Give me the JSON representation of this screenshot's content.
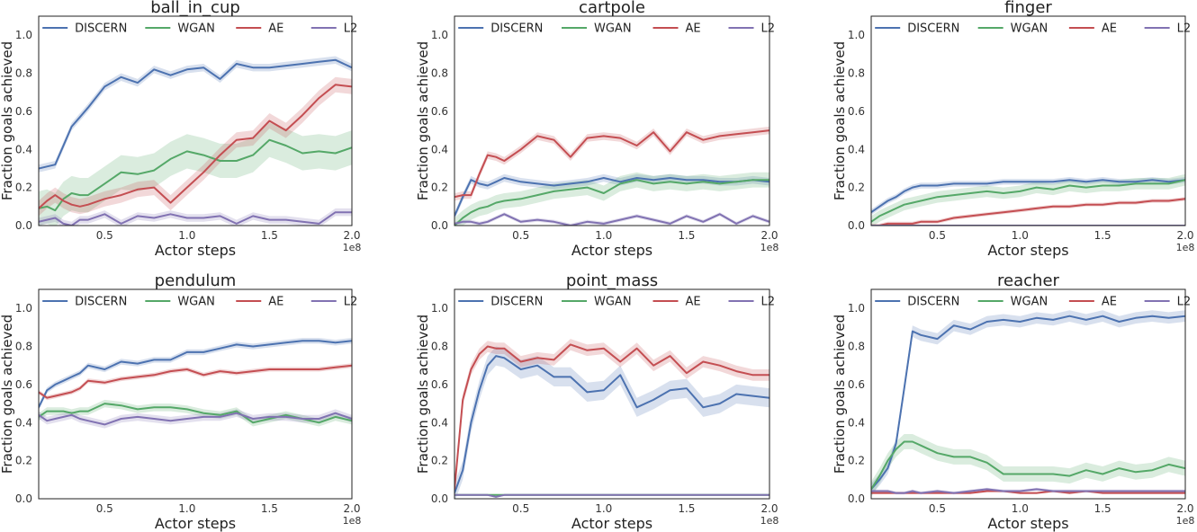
{
  "colors": {
    "DISCERN": "#4c72b0",
    "WGAN": "#55a868",
    "AE": "#c44e52",
    "L2": "#8172b2"
  },
  "chart_data": [
    {
      "type": "line",
      "title": "ball_in_cup",
      "xlabel": "Actor steps",
      "ylabel": "Fraction goals achieved",
      "x_scale_label": "1e8",
      "xlim": [
        0.1,
        2.0
      ],
      "ylim": [
        0.0,
        1.1
      ],
      "xticks": [
        "0.5",
        "1.0",
        "1.5",
        "2.0"
      ],
      "yticks": [
        "0.0",
        "0.2",
        "0.4",
        "0.6",
        "0.8",
        "1.0"
      ],
      "legend": [
        "DISCERN",
        "WGAN",
        "AE",
        "L2"
      ],
      "x": [
        0.1,
        0.15,
        0.2,
        0.25,
        0.3,
        0.35,
        0.4,
        0.5,
        0.6,
        0.7,
        0.8,
        0.9,
        1.0,
        1.1,
        1.2,
        1.3,
        1.4,
        1.5,
        1.6,
        1.7,
        1.8,
        1.9,
        2.0
      ],
      "series": [
        {
          "name": "DISCERN",
          "values": [
            0.3,
            0.31,
            0.32,
            0.42,
            0.52,
            0.57,
            0.62,
            0.73,
            0.78,
            0.75,
            0.82,
            0.79,
            0.82,
            0.83,
            0.77,
            0.85,
            0.83,
            0.83,
            0.84,
            0.85,
            0.86,
            0.87,
            0.83
          ],
          "band": 0.02
        },
        {
          "name": "WGAN",
          "values": [
            0.09,
            0.1,
            0.08,
            0.14,
            0.17,
            0.16,
            0.16,
            0.22,
            0.28,
            0.27,
            0.29,
            0.35,
            0.39,
            0.37,
            0.34,
            0.34,
            0.37,
            0.45,
            0.42,
            0.38,
            0.39,
            0.38,
            0.41
          ],
          "band": 0.09
        },
        {
          "name": "AE",
          "values": [
            0.09,
            0.13,
            0.16,
            0.13,
            0.11,
            0.1,
            0.11,
            0.14,
            0.16,
            0.19,
            0.2,
            0.12,
            0.2,
            0.28,
            0.37,
            0.45,
            0.46,
            0.55,
            0.5,
            0.58,
            0.67,
            0.74,
            0.73
          ],
          "band": 0.04
        },
        {
          "name": "L2",
          "values": [
            0.02,
            0.03,
            0.04,
            0.01,
            0.0,
            0.03,
            0.03,
            0.06,
            0.01,
            0.05,
            0.04,
            0.06,
            0.04,
            0.04,
            0.05,
            0.01,
            0.05,
            0.03,
            0.03,
            0.02,
            0.01,
            0.07,
            0.07
          ],
          "band": 0.02
        }
      ]
    },
    {
      "type": "line",
      "title": "cartpole",
      "xlabel": "Actor steps",
      "ylabel": "Fraction goals achieved",
      "x_scale_label": "1e8",
      "xlim": [
        0.1,
        2.0
      ],
      "ylim": [
        0.0,
        1.1
      ],
      "xticks": [
        "0.5",
        "1.0",
        "1.5",
        "2.0"
      ],
      "yticks": [
        "0.0",
        "0.2",
        "0.4",
        "0.6",
        "0.8",
        "1.0"
      ],
      "legend": [
        "DISCERN",
        "WGAN",
        "AE",
        "L2"
      ],
      "x": [
        0.1,
        0.15,
        0.2,
        0.25,
        0.3,
        0.35,
        0.4,
        0.5,
        0.6,
        0.7,
        0.8,
        0.9,
        1.0,
        1.1,
        1.2,
        1.3,
        1.4,
        1.5,
        1.6,
        1.7,
        1.8,
        1.9,
        2.0
      ],
      "series": [
        {
          "name": "DISCERN",
          "values": [
            0.05,
            0.15,
            0.24,
            0.22,
            0.21,
            0.23,
            0.25,
            0.23,
            0.22,
            0.21,
            0.22,
            0.23,
            0.25,
            0.23,
            0.25,
            0.24,
            0.25,
            0.24,
            0.24,
            0.23,
            0.23,
            0.24,
            0.23
          ],
          "band": 0.02
        },
        {
          "name": "WGAN",
          "values": [
            0.0,
            0.04,
            0.07,
            0.09,
            0.1,
            0.12,
            0.13,
            0.14,
            0.16,
            0.18,
            0.19,
            0.2,
            0.17,
            0.22,
            0.24,
            0.22,
            0.23,
            0.22,
            0.23,
            0.22,
            0.23,
            0.24,
            0.24
          ],
          "band": 0.04
        },
        {
          "name": "AE",
          "values": [
            0.15,
            0.16,
            0.16,
            0.27,
            0.37,
            0.36,
            0.34,
            0.4,
            0.47,
            0.45,
            0.36,
            0.46,
            0.47,
            0.46,
            0.42,
            0.49,
            0.39,
            0.49,
            0.45,
            0.47,
            0.48,
            0.49,
            0.5
          ],
          "band": 0.02
        },
        {
          "name": "L2",
          "values": [
            0.01,
            0.02,
            0.02,
            0.01,
            0.02,
            0.04,
            0.06,
            0.02,
            0.03,
            0.02,
            0.0,
            0.02,
            0.01,
            0.03,
            0.05,
            0.03,
            0.01,
            0.05,
            0.02,
            0.06,
            0.01,
            0.05,
            0.02
          ],
          "band": 0.01
        }
      ]
    },
    {
      "type": "line",
      "title": "finger",
      "xlabel": "Actor steps",
      "ylabel": "Fraction goals achieved",
      "x_scale_label": "1e8",
      "xlim": [
        0.1,
        2.0
      ],
      "ylim": [
        0.0,
        1.1
      ],
      "xticks": [
        "0.5",
        "1.0",
        "1.5",
        "2.0"
      ],
      "yticks": [
        "0.0",
        "0.2",
        "0.4",
        "0.6",
        "0.8",
        "1.0"
      ],
      "legend": [
        "DISCERN",
        "WGAN",
        "AE",
        "L2"
      ],
      "x": [
        0.1,
        0.15,
        0.2,
        0.25,
        0.3,
        0.35,
        0.4,
        0.5,
        0.6,
        0.7,
        0.8,
        0.9,
        1.0,
        1.1,
        1.2,
        1.3,
        1.4,
        1.5,
        1.6,
        1.7,
        1.8,
        1.9,
        2.0
      ],
      "series": [
        {
          "name": "DISCERN",
          "values": [
            0.07,
            0.1,
            0.13,
            0.15,
            0.18,
            0.2,
            0.21,
            0.21,
            0.22,
            0.22,
            0.22,
            0.23,
            0.23,
            0.23,
            0.23,
            0.24,
            0.23,
            0.24,
            0.23,
            0.23,
            0.24,
            0.23,
            0.24
          ],
          "band": 0.015
        },
        {
          "name": "WGAN",
          "values": [
            0.02,
            0.05,
            0.07,
            0.09,
            0.11,
            0.12,
            0.13,
            0.15,
            0.16,
            0.17,
            0.18,
            0.17,
            0.18,
            0.2,
            0.19,
            0.21,
            0.2,
            0.21,
            0.21,
            0.22,
            0.22,
            0.22,
            0.24
          ],
          "band": 0.03
        },
        {
          "name": "AE",
          "values": [
            0.0,
            0.0,
            0.01,
            0.01,
            0.01,
            0.01,
            0.02,
            0.02,
            0.04,
            0.05,
            0.06,
            0.07,
            0.08,
            0.09,
            0.1,
            0.1,
            0.11,
            0.11,
            0.12,
            0.12,
            0.13,
            0.13,
            0.14
          ],
          "band": 0.01
        },
        {
          "name": "L2",
          "values": [
            0.0,
            0.0,
            0.0,
            0.0,
            0.0,
            0.0,
            0.0,
            0.0,
            0.0,
            0.0,
            0.0,
            0.0,
            0.0,
            0.0,
            0.0,
            0.0,
            0.0,
            0.0,
            0.0,
            0.0,
            0.0,
            0.0,
            0.0
          ],
          "band": 0.002
        }
      ]
    },
    {
      "type": "line",
      "title": "pendulum",
      "xlabel": "Actor steps",
      "ylabel": "Fraction goals achieved",
      "x_scale_label": "1e8",
      "xlim": [
        0.1,
        2.0
      ],
      "ylim": [
        0.0,
        1.1
      ],
      "xticks": [
        "0.5",
        "1.0",
        "1.5",
        "2.0"
      ],
      "yticks": [
        "0.0",
        "0.2",
        "0.4",
        "0.6",
        "0.8",
        "1.0"
      ],
      "legend": [
        "DISCERN",
        "WGAN",
        "AE",
        "L2"
      ],
      "x": [
        0.1,
        0.15,
        0.2,
        0.25,
        0.3,
        0.35,
        0.4,
        0.5,
        0.6,
        0.7,
        0.8,
        0.9,
        1.0,
        1.1,
        1.2,
        1.3,
        1.4,
        1.5,
        1.6,
        1.7,
        1.8,
        1.9,
        2.0
      ],
      "series": [
        {
          "name": "DISCERN",
          "values": [
            0.48,
            0.57,
            0.6,
            0.62,
            0.64,
            0.66,
            0.7,
            0.68,
            0.72,
            0.71,
            0.73,
            0.73,
            0.77,
            0.77,
            0.79,
            0.81,
            0.8,
            0.81,
            0.82,
            0.83,
            0.83,
            0.82,
            0.83
          ],
          "band": 0.015
        },
        {
          "name": "WGAN",
          "values": [
            0.43,
            0.46,
            0.46,
            0.46,
            0.45,
            0.46,
            0.46,
            0.5,
            0.49,
            0.47,
            0.48,
            0.48,
            0.47,
            0.45,
            0.44,
            0.46,
            0.4,
            0.42,
            0.44,
            0.42,
            0.4,
            0.43,
            0.41
          ],
          "band": 0.02
        },
        {
          "name": "AE",
          "values": [
            0.56,
            0.53,
            0.54,
            0.55,
            0.56,
            0.58,
            0.62,
            0.61,
            0.63,
            0.64,
            0.65,
            0.67,
            0.68,
            0.65,
            0.67,
            0.66,
            0.67,
            0.68,
            0.68,
            0.68,
            0.68,
            0.69,
            0.7
          ],
          "band": 0.012
        },
        {
          "name": "L2",
          "values": [
            0.44,
            0.41,
            0.42,
            0.43,
            0.44,
            0.42,
            0.41,
            0.39,
            0.42,
            0.43,
            0.42,
            0.41,
            0.42,
            0.43,
            0.43,
            0.45,
            0.42,
            0.43,
            0.43,
            0.42,
            0.42,
            0.45,
            0.42
          ],
          "band": 0.02
        }
      ]
    },
    {
      "type": "line",
      "title": "point_mass",
      "xlabel": "Actor steps",
      "ylabel": "Fraction goals achieved",
      "x_scale_label": "1e8",
      "xlim": [
        0.1,
        2.0
      ],
      "ylim": [
        0.0,
        1.1
      ],
      "xticks": [
        "0.5",
        "1.0",
        "1.5",
        "2.0"
      ],
      "yticks": [
        "0.0",
        "0.2",
        "0.4",
        "0.6",
        "0.8",
        "1.0"
      ],
      "legend": [
        "DISCERN",
        "WGAN",
        "AE",
        "L2"
      ],
      "x": [
        0.1,
        0.15,
        0.2,
        0.25,
        0.3,
        0.35,
        0.4,
        0.5,
        0.6,
        0.7,
        0.8,
        0.9,
        1.0,
        1.1,
        1.2,
        1.3,
        1.4,
        1.5,
        1.6,
        1.7,
        1.8,
        1.9,
        2.0
      ],
      "series": [
        {
          "name": "DISCERN",
          "values": [
            0.03,
            0.15,
            0.4,
            0.57,
            0.7,
            0.75,
            0.74,
            0.68,
            0.7,
            0.64,
            0.64,
            0.56,
            0.57,
            0.65,
            0.48,
            0.52,
            0.57,
            0.58,
            0.48,
            0.5,
            0.55,
            0.54,
            0.53
          ],
          "band": 0.05
        },
        {
          "name": "WGAN",
          "values": [
            0.02,
            0.02,
            0.02,
            0.02,
            0.02,
            0.02,
            0.02,
            0.02,
            0.02,
            0.02,
            0.02,
            0.02,
            0.02,
            0.02,
            0.02,
            0.02,
            0.02,
            0.02,
            0.02,
            0.02,
            0.02,
            0.02,
            0.02
          ],
          "band": 0.005
        },
        {
          "name": "AE",
          "values": [
            0.05,
            0.52,
            0.68,
            0.76,
            0.8,
            0.79,
            0.79,
            0.72,
            0.74,
            0.73,
            0.81,
            0.78,
            0.79,
            0.72,
            0.79,
            0.7,
            0.75,
            0.66,
            0.72,
            0.7,
            0.67,
            0.65,
            0.65
          ],
          "band": 0.03
        },
        {
          "name": "L2",
          "values": [
            0.02,
            0.02,
            0.02,
            0.02,
            0.02,
            0.01,
            0.02,
            0.02,
            0.02,
            0.02,
            0.02,
            0.02,
            0.02,
            0.02,
            0.02,
            0.02,
            0.02,
            0.02,
            0.02,
            0.02,
            0.02,
            0.02,
            0.02
          ],
          "band": 0.005
        }
      ]
    },
    {
      "type": "line",
      "title": "reacher",
      "xlabel": "Actor steps",
      "ylabel": "Fraction goals achieved",
      "x_scale_label": "1e8",
      "xlim": [
        0.1,
        2.0
      ],
      "ylim": [
        0.0,
        1.1
      ],
      "xticks": [
        "0.5",
        "1.0",
        "1.5",
        "2.0"
      ],
      "yticks": [
        "0.0",
        "0.2",
        "0.4",
        "0.6",
        "0.8",
        "1.0"
      ],
      "legend": [
        "DISCERN",
        "WGAN",
        "AE",
        "L2"
      ],
      "x": [
        0.1,
        0.15,
        0.2,
        0.25,
        0.3,
        0.35,
        0.4,
        0.5,
        0.6,
        0.7,
        0.8,
        0.9,
        1.0,
        1.1,
        1.2,
        1.3,
        1.4,
        1.5,
        1.6,
        1.7,
        1.8,
        1.9,
        2.0
      ],
      "series": [
        {
          "name": "DISCERN",
          "values": [
            0.05,
            0.1,
            0.16,
            0.29,
            0.58,
            0.88,
            0.86,
            0.84,
            0.91,
            0.89,
            0.93,
            0.94,
            0.93,
            0.95,
            0.94,
            0.96,
            0.94,
            0.96,
            0.93,
            0.95,
            0.96,
            0.95,
            0.96
          ],
          "band": 0.03
        },
        {
          "name": "WGAN",
          "values": [
            0.05,
            0.12,
            0.2,
            0.26,
            0.3,
            0.3,
            0.28,
            0.24,
            0.22,
            0.22,
            0.19,
            0.13,
            0.13,
            0.13,
            0.13,
            0.12,
            0.15,
            0.13,
            0.16,
            0.14,
            0.15,
            0.18,
            0.16
          ],
          "band": 0.04
        },
        {
          "name": "AE",
          "values": [
            0.03,
            0.03,
            0.03,
            0.03,
            0.03,
            0.03,
            0.03,
            0.03,
            0.03,
            0.03,
            0.04,
            0.04,
            0.03,
            0.03,
            0.04,
            0.03,
            0.04,
            0.03,
            0.03,
            0.03,
            0.03,
            0.03,
            0.03
          ],
          "band": 0.005
        },
        {
          "name": "L2",
          "values": [
            0.04,
            0.04,
            0.04,
            0.03,
            0.03,
            0.04,
            0.03,
            0.04,
            0.03,
            0.04,
            0.05,
            0.04,
            0.04,
            0.05,
            0.04,
            0.04,
            0.04,
            0.04,
            0.04,
            0.04,
            0.04,
            0.04,
            0.04
          ],
          "band": 0.008
        }
      ]
    }
  ]
}
